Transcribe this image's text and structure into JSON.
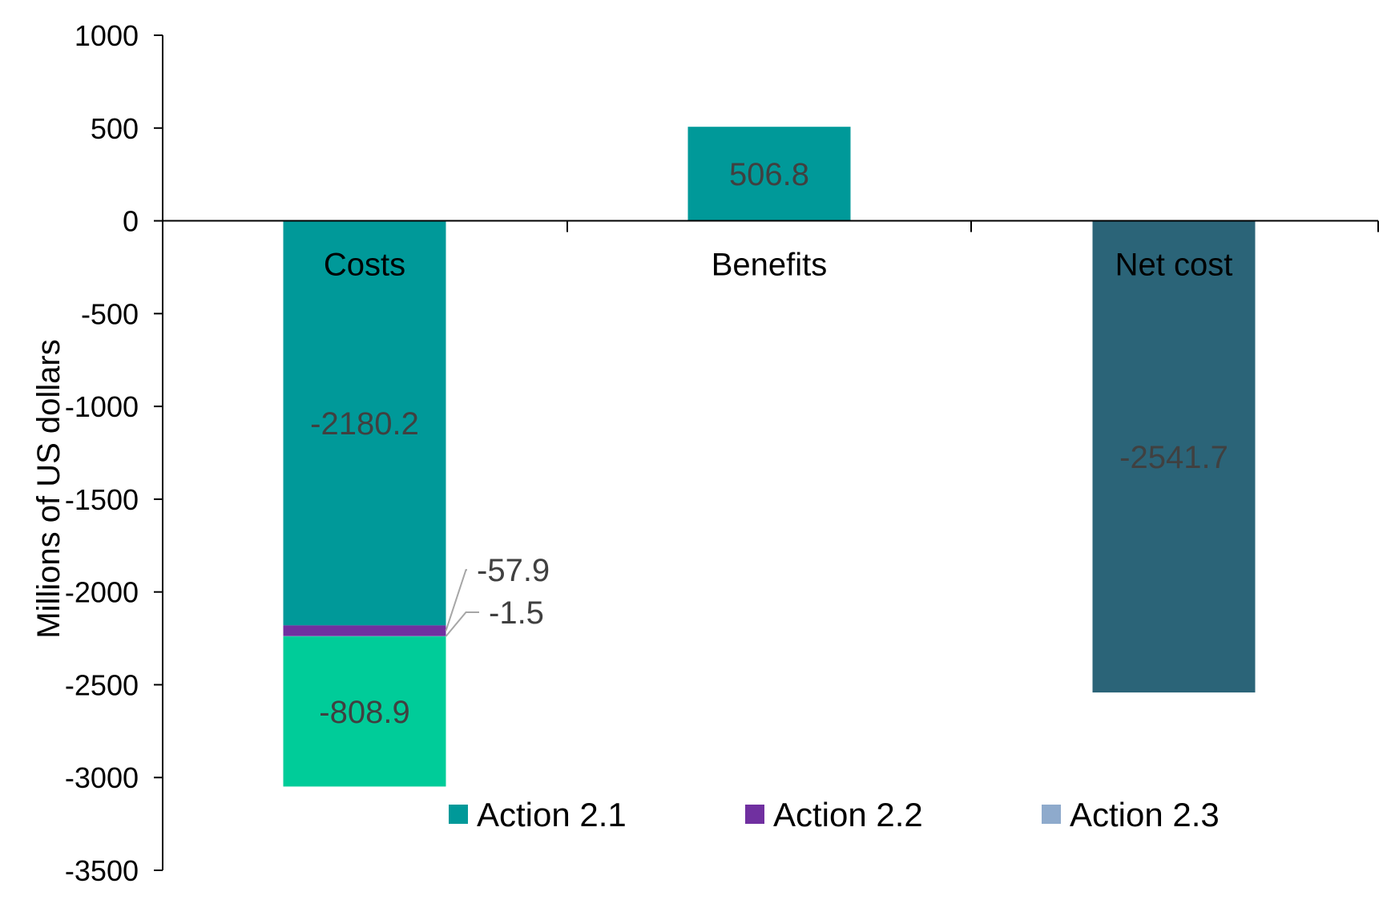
{
  "chart_data": {
    "type": "bar",
    "stacked": true,
    "categories": [
      "Costs",
      "Benefits",
      "Net cost"
    ],
    "ylabel": "Millions of US dollars",
    "ylim": [
      -3500,
      1000
    ],
    "yticks": [
      1000,
      500,
      0,
      -500,
      -1000,
      -1500,
      -2000,
      -2500,
      -3000,
      -3500
    ],
    "yticks_text": [
      "1000",
      "500",
      "0",
      "-500",
      "-1000",
      "-1500",
      "-2000",
      "-2500",
      "-3000",
      "-3500"
    ],
    "grid": false,
    "legend_position": "bottom",
    "series": [
      {
        "name": "Action 2.1",
        "color": "#009999",
        "values": [
          -2180.2,
          506.8,
          null
        ],
        "labels": [
          "-2180.2",
          "506.8",
          ""
        ]
      },
      {
        "name": "Action 2.2",
        "color": "#7030A0",
        "values": [
          -57.9,
          null,
          null
        ],
        "labels": [
          "-57.9",
          "",
          ""
        ]
      },
      {
        "name": "Action 2.3",
        "color": "#8EAACC",
        "values": [
          -1.5,
          null,
          null
        ],
        "labels": [
          "-1.5",
          "",
          ""
        ]
      },
      {
        "color": "#00CC99",
        "values": [
          -808.9,
          null,
          null
        ],
        "labels": [
          "-808.9",
          "",
          ""
        ]
      },
      {
        "color": "#2B6478",
        "values": [
          null,
          null,
          -2541.7
        ],
        "labels": [
          "",
          "",
          "-2541.7"
        ]
      }
    ]
  }
}
